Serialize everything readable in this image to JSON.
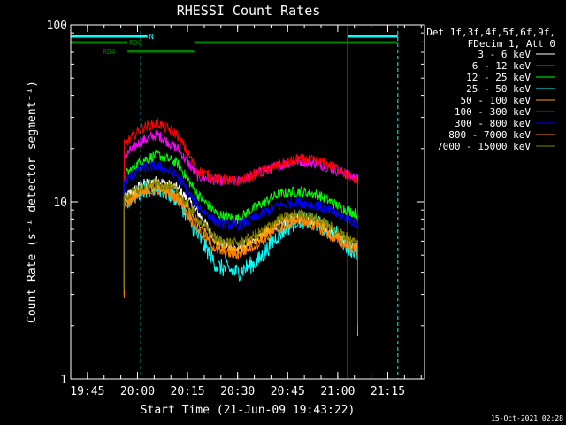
{
  "chart_data": {
    "type": "line",
    "title": "RHESSI Count Rates",
    "xlabel": "Start Time (21-Jun-09 19:43:22)",
    "ylabel": "Count Rate (s⁻¹ detector segment⁻¹)",
    "x_unit": "minutes",
    "xlim": [
      "19:40",
      "21:26"
    ],
    "ylim": [
      1,
      100
    ],
    "y_scale": "log",
    "x_ticks": [
      "19:45",
      "20:00",
      "20:15",
      "20:30",
      "20:45",
      "21:00",
      "21:15"
    ],
    "y_ticks": [
      "1",
      "10",
      "100"
    ],
    "legend_header": [
      "Det 1f,3f,4f,5f,6f,9f,",
      "FDecim 1, Att 0"
    ],
    "legend_position": "top-right",
    "series": [
      {
        "name": "3 - 6 keV",
        "color": "#ffffff",
        "x": [
          "19:56",
          "20:01",
          "20:06",
          "20:12",
          "20:18",
          "20:24",
          "20:30",
          "20:36",
          "20:42",
          "20:48",
          "20:54",
          "21:00",
          "21:06"
        ],
        "values": [
          10.5,
          12.5,
          13.2,
          12.0,
          8.8,
          5.9,
          5.4,
          6.2,
          7.5,
          8.2,
          7.7,
          6.5,
          5.5
        ]
      },
      {
        "name": "6 - 12 keV",
        "color": "#ff00ff",
        "x": [
          "19:56",
          "20:01",
          "20:06",
          "20:12",
          "20:18",
          "20:24",
          "20:30",
          "20:36",
          "20:42",
          "20:48",
          "20:54",
          "21:00",
          "21:06"
        ],
        "values": [
          18,
          22,
          24,
          20,
          14,
          13.2,
          13,
          14.5,
          16,
          17,
          16.5,
          15,
          13.5
        ]
      },
      {
        "name": "12 - 25 keV",
        "color": "#00ff00",
        "x": [
          "19:56",
          "20:01",
          "20:06",
          "20:12",
          "20:18",
          "20:24",
          "20:30",
          "20:36",
          "20:42",
          "20:48",
          "20:54",
          "21:00",
          "21:06"
        ],
        "values": [
          14,
          17,
          18.5,
          16.5,
          11,
          8.5,
          8,
          9.5,
          11,
          11.5,
          11,
          9.5,
          8.5
        ]
      },
      {
        "name": "25 - 50 keV",
        "color": "#00ffff",
        "x": [
          "19:56",
          "20:01",
          "20:06",
          "20:12",
          "20:18",
          "20:24",
          "20:30",
          "20:36",
          "20:42",
          "20:48",
          "20:54",
          "21:00",
          "21:06"
        ],
        "values": [
          10,
          11.5,
          12,
          10.5,
          6.5,
          4.3,
          4.0,
          4.6,
          6.5,
          8.0,
          7.5,
          6.5,
          5.0
        ]
      },
      {
        "name": "50 - 100 keV",
        "color": "#ffa500",
        "x": [
          "19:56",
          "20:01",
          "20:06",
          "20:12",
          "20:18",
          "20:24",
          "20:30",
          "20:36",
          "20:42",
          "20:48",
          "20:54",
          "21:00",
          "21:06"
        ],
        "values": [
          10,
          11.5,
          12.5,
          11,
          7.5,
          5.7,
          5.4,
          6.2,
          7.6,
          8.3,
          7.8,
          6.6,
          5.6
        ]
      },
      {
        "name": "100 - 300 keV",
        "color": "#ff0000",
        "x": [
          "19:56",
          "20:01",
          "20:06",
          "20:12",
          "20:18",
          "20:24",
          "20:30",
          "20:36",
          "20:42",
          "20:48",
          "20:54",
          "21:00",
          "21:06"
        ],
        "values": [
          21,
          26,
          28,
          24,
          15,
          13.5,
          13,
          14.5,
          16,
          17.5,
          17,
          15.5,
          13
        ]
      },
      {
        "name": "300 - 800 keV",
        "color": "#0000ff",
        "x": [
          "19:56",
          "20:01",
          "20:06",
          "20:12",
          "20:18",
          "20:24",
          "20:30",
          "20:36",
          "20:42",
          "20:48",
          "20:54",
          "21:00",
          "21:06"
        ],
        "values": [
          13,
          15.5,
          16,
          14,
          9.5,
          7.6,
          7.3,
          8.3,
          9.5,
          10,
          9.5,
          8.5,
          7.5
        ]
      },
      {
        "name": "800 - 7000 keV",
        "color": "#ff8000",
        "x": [
          "19:56",
          "20:01",
          "20:06",
          "20:12",
          "20:18",
          "20:24",
          "20:30",
          "20:36",
          "20:42",
          "20:48",
          "20:54",
          "21:00",
          "21:06"
        ],
        "values": [
          9.5,
          11,
          11.8,
          10.5,
          7,
          5.3,
          5.0,
          5.8,
          7.0,
          7.8,
          7.2,
          6.0,
          5.2
        ]
      },
      {
        "name": "7000 - 15000 keV",
        "color": "#808000",
        "x": [
          "19:56",
          "20:01",
          "20:06",
          "20:12",
          "20:18",
          "20:24",
          "20:30",
          "20:36",
          "20:42",
          "20:48",
          "20:54",
          "21:00",
          "21:06"
        ],
        "values": [
          10.5,
          12,
          12.8,
          11.5,
          8,
          6.1,
          5.8,
          6.6,
          7.9,
          8.6,
          8.0,
          6.8,
          5.8
        ]
      }
    ],
    "annotations": [
      {
        "label": "N",
        "color": "#00ffff",
        "intervals": [
          [
            "19:40",
            "20:03"
          ],
          [
            "21:03",
            "21:18"
          ]
        ]
      },
      {
        "label": "RD0",
        "color": "#008000",
        "intervals": [
          [
            "19:40",
            "19:57"
          ],
          [
            "20:17",
            "21:18"
          ]
        ]
      },
      {
        "label": "RD4",
        "color": "#008000",
        "intervals": [
          [
            "19:57",
            "20:17"
          ]
        ]
      }
    ],
    "vertical_lines": [
      {
        "x": "19:40",
        "color": "#00ffff",
        "style": "solid"
      },
      {
        "x": "20:01",
        "color": "#00ffff",
        "style": "dashed"
      },
      {
        "x": "21:03",
        "color": "#00ffff",
        "style": "solid"
      },
      {
        "x": "21:18",
        "color": "#00ffff",
        "style": "dashed"
      }
    ],
    "footer_timestamp": "15-Oct-2021 02:28"
  }
}
